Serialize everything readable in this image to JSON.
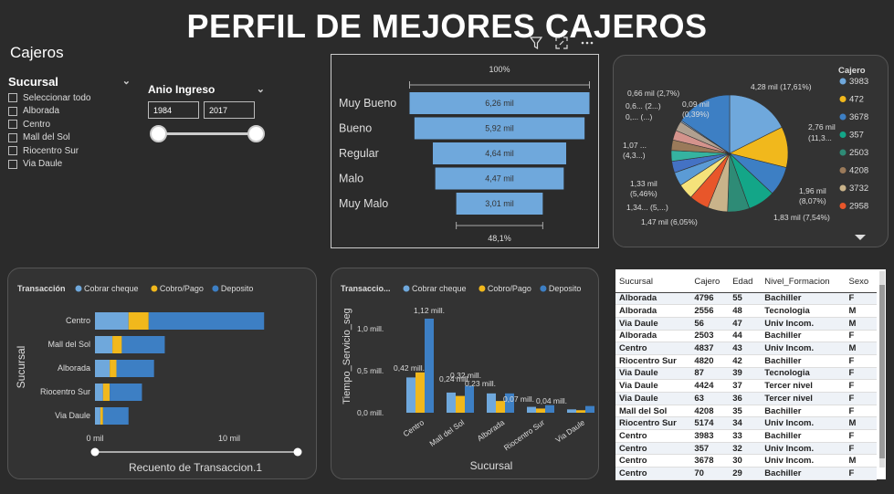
{
  "title": "PERFIL DE MEJORES  CAJEROS",
  "slicers": {
    "heading": "Cajeros",
    "sucursal": {
      "label": "Sucursal",
      "options": [
        "Seleccionar todo",
        "Alborada",
        "Centro",
        "Mall del Sol",
        "Riocentro Sur",
        "Via Daule"
      ]
    },
    "anio": {
      "label": "Anio Ingreso",
      "from": "1984",
      "to": "2017"
    }
  },
  "funnel": {
    "top_label": "100%",
    "bottom_label": "48,1%",
    "categories": [
      "Muy Bueno",
      "Bueno",
      "Regular",
      "Malo",
      "Muy Malo"
    ],
    "labels": [
      "6,26 mil",
      "5,92 mil",
      "4,64 mil",
      "4,47 mil",
      "3,01 mil"
    ],
    "values": [
      6.26,
      5.92,
      4.64,
      4.47,
      3.01
    ],
    "color": "#6fa8dc"
  },
  "pie": {
    "legend_title": "Cajero",
    "legend": [
      {
        "label": "3983",
        "color": "#6fa8dc"
      },
      {
        "label": "472",
        "color": "#f1b81c"
      },
      {
        "label": "3678",
        "color": "#3d7fc4"
      },
      {
        "label": "357",
        "color": "#13a688"
      },
      {
        "label": "2503",
        "color": "#2e8b76"
      },
      {
        "label": "4208",
        "color": "#9a7a5a"
      },
      {
        "label": "3732",
        "color": "#c9b38a"
      },
      {
        "label": "2958",
        "color": "#e8562a"
      }
    ],
    "slice_values": [
      17.61,
      11.3,
      8.07,
      7.54,
      6.05,
      5.5,
      5.46,
      4.3,
      3.8,
      3.2,
      3.0,
      2.9,
      2.7,
      2.7,
      0.39,
      15.48
    ],
    "slice_colors": [
      "#6fa8dc",
      "#f1b81c",
      "#3d7fc4",
      "#13a688",
      "#2e8b76",
      "#c9b38a",
      "#e8562a",
      "#f5e27a",
      "#5b9bd5",
      "#4472c4",
      "#35b3a0",
      "#9a7a5a",
      "#d4938c",
      "#b0a090",
      "#8fb4e0",
      "#3d7fc4"
    ],
    "labels": [
      "4,28 mil (17,61%)",
      "2,76 mil",
      "(11,3...",
      "1,96 mil",
      "(8,07%)",
      "1,83 mil (7,54%)",
      "1,47 mil (6,05%)",
      "1,34... (5,...)",
      "1,33 mil",
      "(5,46%)",
      "1,07 ...",
      "(4,3...)",
      "0,... (...)",
      "0,6... (2...)",
      "0,66 mil (2,7%)",
      "0,09 mil",
      "(0,39%)"
    ]
  },
  "bar_chart": {
    "legend_title": "Transacción",
    "series": [
      {
        "name": "Cobrar cheque",
        "color": "#6fa8dc",
        "values": [
          2.5,
          1.3,
          1.1,
          0.6,
          0.4
        ]
      },
      {
        "name": "Cobro/Pago",
        "color": "#f1b81c",
        "values": [
          1.5,
          0.7,
          0.5,
          0.5,
          0.2
        ]
      },
      {
        "name": "Deposito",
        "color": "#3d7fc4",
        "values": [
          8.6,
          3.2,
          2.8,
          2.4,
          1.9
        ]
      }
    ],
    "categories": [
      "Centro",
      "Mall del Sol",
      "Alborada",
      "Riocentro Sur",
      "Via Daule"
    ],
    "ticks": [
      "0 mil",
      "10 mil"
    ],
    "xlabel": "Recuento de Transaccion.1",
    "ylabel": "Sucursal"
  },
  "col_chart": {
    "legend_title": "Transaccio...",
    "series_names": [
      "Cobrar cheque",
      "Cobro/Pago",
      "Deposito"
    ],
    "categories": [
      "Centro",
      "Mall del Sol",
      "Alborada",
      "Riocentro Sur",
      "Via Daule"
    ],
    "values": [
      [
        0.42,
        0.48,
        1.12
      ],
      [
        0.24,
        0.2,
        0.32
      ],
      [
        0.23,
        0.14,
        0.23
      ],
      [
        0.07,
        0.05,
        0.09
      ],
      [
        0.04,
        0.03,
        0.08
      ]
    ],
    "labels": [
      "0,42 mill.",
      "1,12 mill.",
      "0,24 mill.",
      "0,32 mill.",
      "0,23 mill.",
      "0,07 mill.",
      "0,04 mill."
    ],
    "yticks": [
      "1,0 mill.",
      "0,5 mill.",
      "0,0 mill."
    ],
    "ylabel": "Tiempo_Servicio_seg",
    "xlabel": "Sucursal"
  },
  "table": {
    "headers": [
      "Sucursal",
      "Cajero",
      "Edad",
      "Nivel_Formacion",
      "Sexo"
    ],
    "rows": [
      [
        "Alborada",
        "4796",
        "55",
        "Bachiller",
        "F"
      ],
      [
        "Alborada",
        "2556",
        "48",
        "Tecnologia",
        "M"
      ],
      [
        "Via Daule",
        "56",
        "47",
        "Univ Incom.",
        "M"
      ],
      [
        "Alborada",
        "2503",
        "44",
        "Bachiller",
        "F"
      ],
      [
        "Centro",
        "4837",
        "43",
        "Univ Incom.",
        "M"
      ],
      [
        "Riocentro Sur",
        "4820",
        "42",
        "Bachiller",
        "F"
      ],
      [
        "Via Daule",
        "87",
        "39",
        "Tecnologia",
        "F"
      ],
      [
        "Via Daule",
        "4424",
        "37",
        "Tercer nivel",
        "F"
      ],
      [
        "Via Daule",
        "63",
        "36",
        "Tercer nivel",
        "F"
      ],
      [
        "Mall del Sol",
        "4208",
        "35",
        "Bachiller",
        "F"
      ],
      [
        "Riocentro Sur",
        "5174",
        "34",
        "Univ Incom.",
        "M"
      ],
      [
        "Centro",
        "3983",
        "33",
        "Bachiller",
        "F"
      ],
      [
        "Centro",
        "357",
        "32",
        "Univ Incom.",
        "F"
      ],
      [
        "Centro",
        "3678",
        "30",
        "Univ Incom.",
        "M"
      ],
      [
        "Centro",
        "70",
        "29",
        "Bachiller",
        "F"
      ]
    ]
  }
}
